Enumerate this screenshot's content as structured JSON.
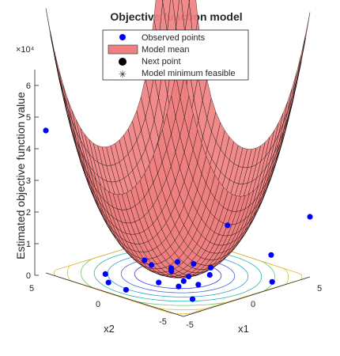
{
  "chart_data": {
    "type": "surface3d",
    "title": "Objective function model",
    "zlabel": "Estimated objective function value",
    "xlabel": "x1",
    "ylabel": "x2",
    "z_multiplier": "×10⁴",
    "z_ticks": [
      "0",
      "1",
      "2",
      "3",
      "4",
      "5",
      "6"
    ],
    "x_ticks": [
      "-5",
      "0",
      "5"
    ],
    "y_ticks": [
      "-5",
      "0",
      "5"
    ],
    "x_range": [
      -5,
      5
    ],
    "y_range": [
      -5,
      5
    ],
    "z_range": [
      0,
      65000
    ],
    "legend": {
      "placement": "top",
      "entries": [
        {
          "label": "Observed points",
          "marker": "dot",
          "color": "#0000ff"
        },
        {
          "label": "Model mean",
          "marker": "patch",
          "color": "#f08080"
        },
        {
          "label": "Next point",
          "marker": "dot",
          "color": "#000000"
        },
        {
          "label": "Model minimum feasible",
          "marker": "asterisk",
          "color": "#ff0000"
        }
      ]
    },
    "colors": {
      "surface": "#f08080",
      "mesh": "#000000",
      "observed": "#0000ff"
    },
    "observed_points": [
      {
        "x1": -5.0,
        "x2": 5.0,
        "z": 45000
      },
      {
        "x1": -5.0,
        "x2": -5.0,
        "z": 52000
      },
      {
        "x1": 5.0,
        "x2": -5.0,
        "z": 19000
      },
      {
        "x1": 0.8,
        "x2": -3.0,
        "z": 13000
      },
      {
        "x1": 2.5,
        "x2": -4.6,
        "z": 4000
      },
      {
        "x1": 4.6,
        "x2": -2.5,
        "z": 1000
      },
      {
        "x1": -1.5,
        "x2": 3.8,
        "z": 300
      },
      {
        "x1": 1.5,
        "x2": 1.5,
        "z": 300
      },
      {
        "x1": 0.0,
        "x2": 4.0,
        "z": 300
      },
      {
        "x1": 2.0,
        "x2": 0.5,
        "z": 300
      },
      {
        "x1": 3.5,
        "x2": 2.5,
        "z": 300
      },
      {
        "x1": 0.8,
        "x2": 0.0,
        "z": 600
      },
      {
        "x1": -0.5,
        "x2": 0.0,
        "z": 1500
      },
      {
        "x1": 0.2,
        "x2": -1.0,
        "z": 2500
      },
      {
        "x1": -1.0,
        "x2": 1.0,
        "z": 3000
      },
      {
        "x1": 1.0,
        "x2": -1.5,
        "z": 1800
      },
      {
        "x1": -2.0,
        "x2": 0.5,
        "z": 2500
      },
      {
        "x1": 0.5,
        "x2": 2.0,
        "z": 800
      },
      {
        "x1": -0.8,
        "x2": -0.8,
        "z": 2000
      },
      {
        "x1": 1.6,
        "x2": -0.8,
        "z": 1200
      },
      {
        "x1": -2.5,
        "x2": 3.0,
        "z": 600
      },
      {
        "x1": 0.0,
        "x2": 0.5,
        "z": 1800
      },
      {
        "x1": 1.2,
        "x2": 0.8,
        "z": 700
      }
    ]
  }
}
